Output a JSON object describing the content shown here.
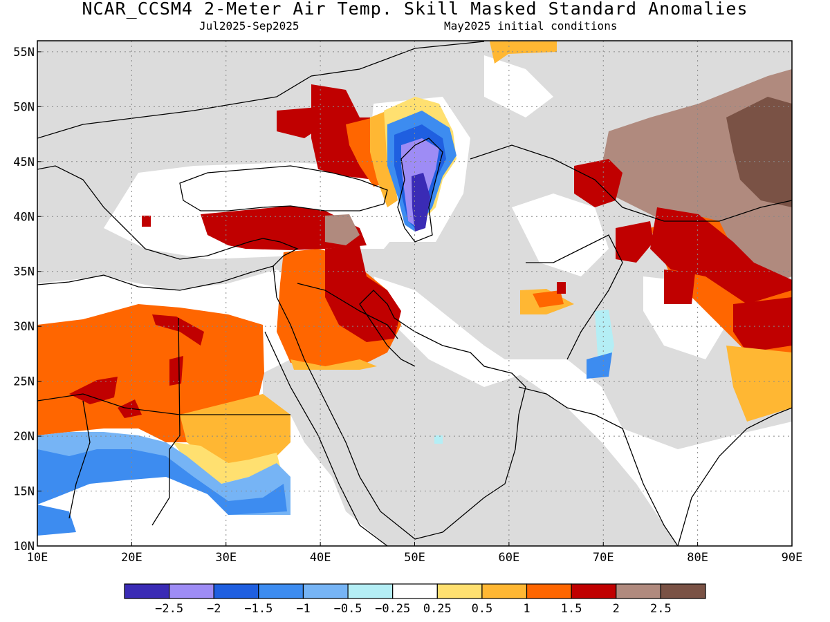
{
  "title": "NCAR_CCSM4 2-Meter Air Temp. Skill Masked Standard Anomalies",
  "subtitle_left": "Jul2025-Sep2025",
  "subtitle_right": "May2025 initial conditions",
  "map": {
    "lon_range": [
      10,
      90
    ],
    "lat_range": [
      10,
      56
    ],
    "x_ticks": [
      "10E",
      "20E",
      "30E",
      "40E",
      "50E",
      "60E",
      "70E",
      "80E",
      "90E"
    ],
    "y_ticks": [
      "10N",
      "15N",
      "20N",
      "25N",
      "30N",
      "35N",
      "40N",
      "45N",
      "50N",
      "55N"
    ],
    "gridlines": "dotted",
    "mask_color": "#dcdcdc",
    "coastline_color": "#000000"
  },
  "colorbar": {
    "colors": [
      "#3a2bb5",
      "#9e8cf5",
      "#1f5fe0",
      "#3d8cf0",
      "#76b4f5",
      "#b4eef5",
      "#ffffff",
      "#ffe070",
      "#ffb733",
      "#ff6600",
      "#c00000",
      "#b08a7e",
      "#7a5245"
    ],
    "labels": [
      "-2.5",
      "-2",
      "-1.5",
      "-1",
      "-0.5",
      "-0.25",
      "0.25",
      "0.5",
      "1",
      "1.5",
      "2",
      "2.5"
    ]
  }
}
